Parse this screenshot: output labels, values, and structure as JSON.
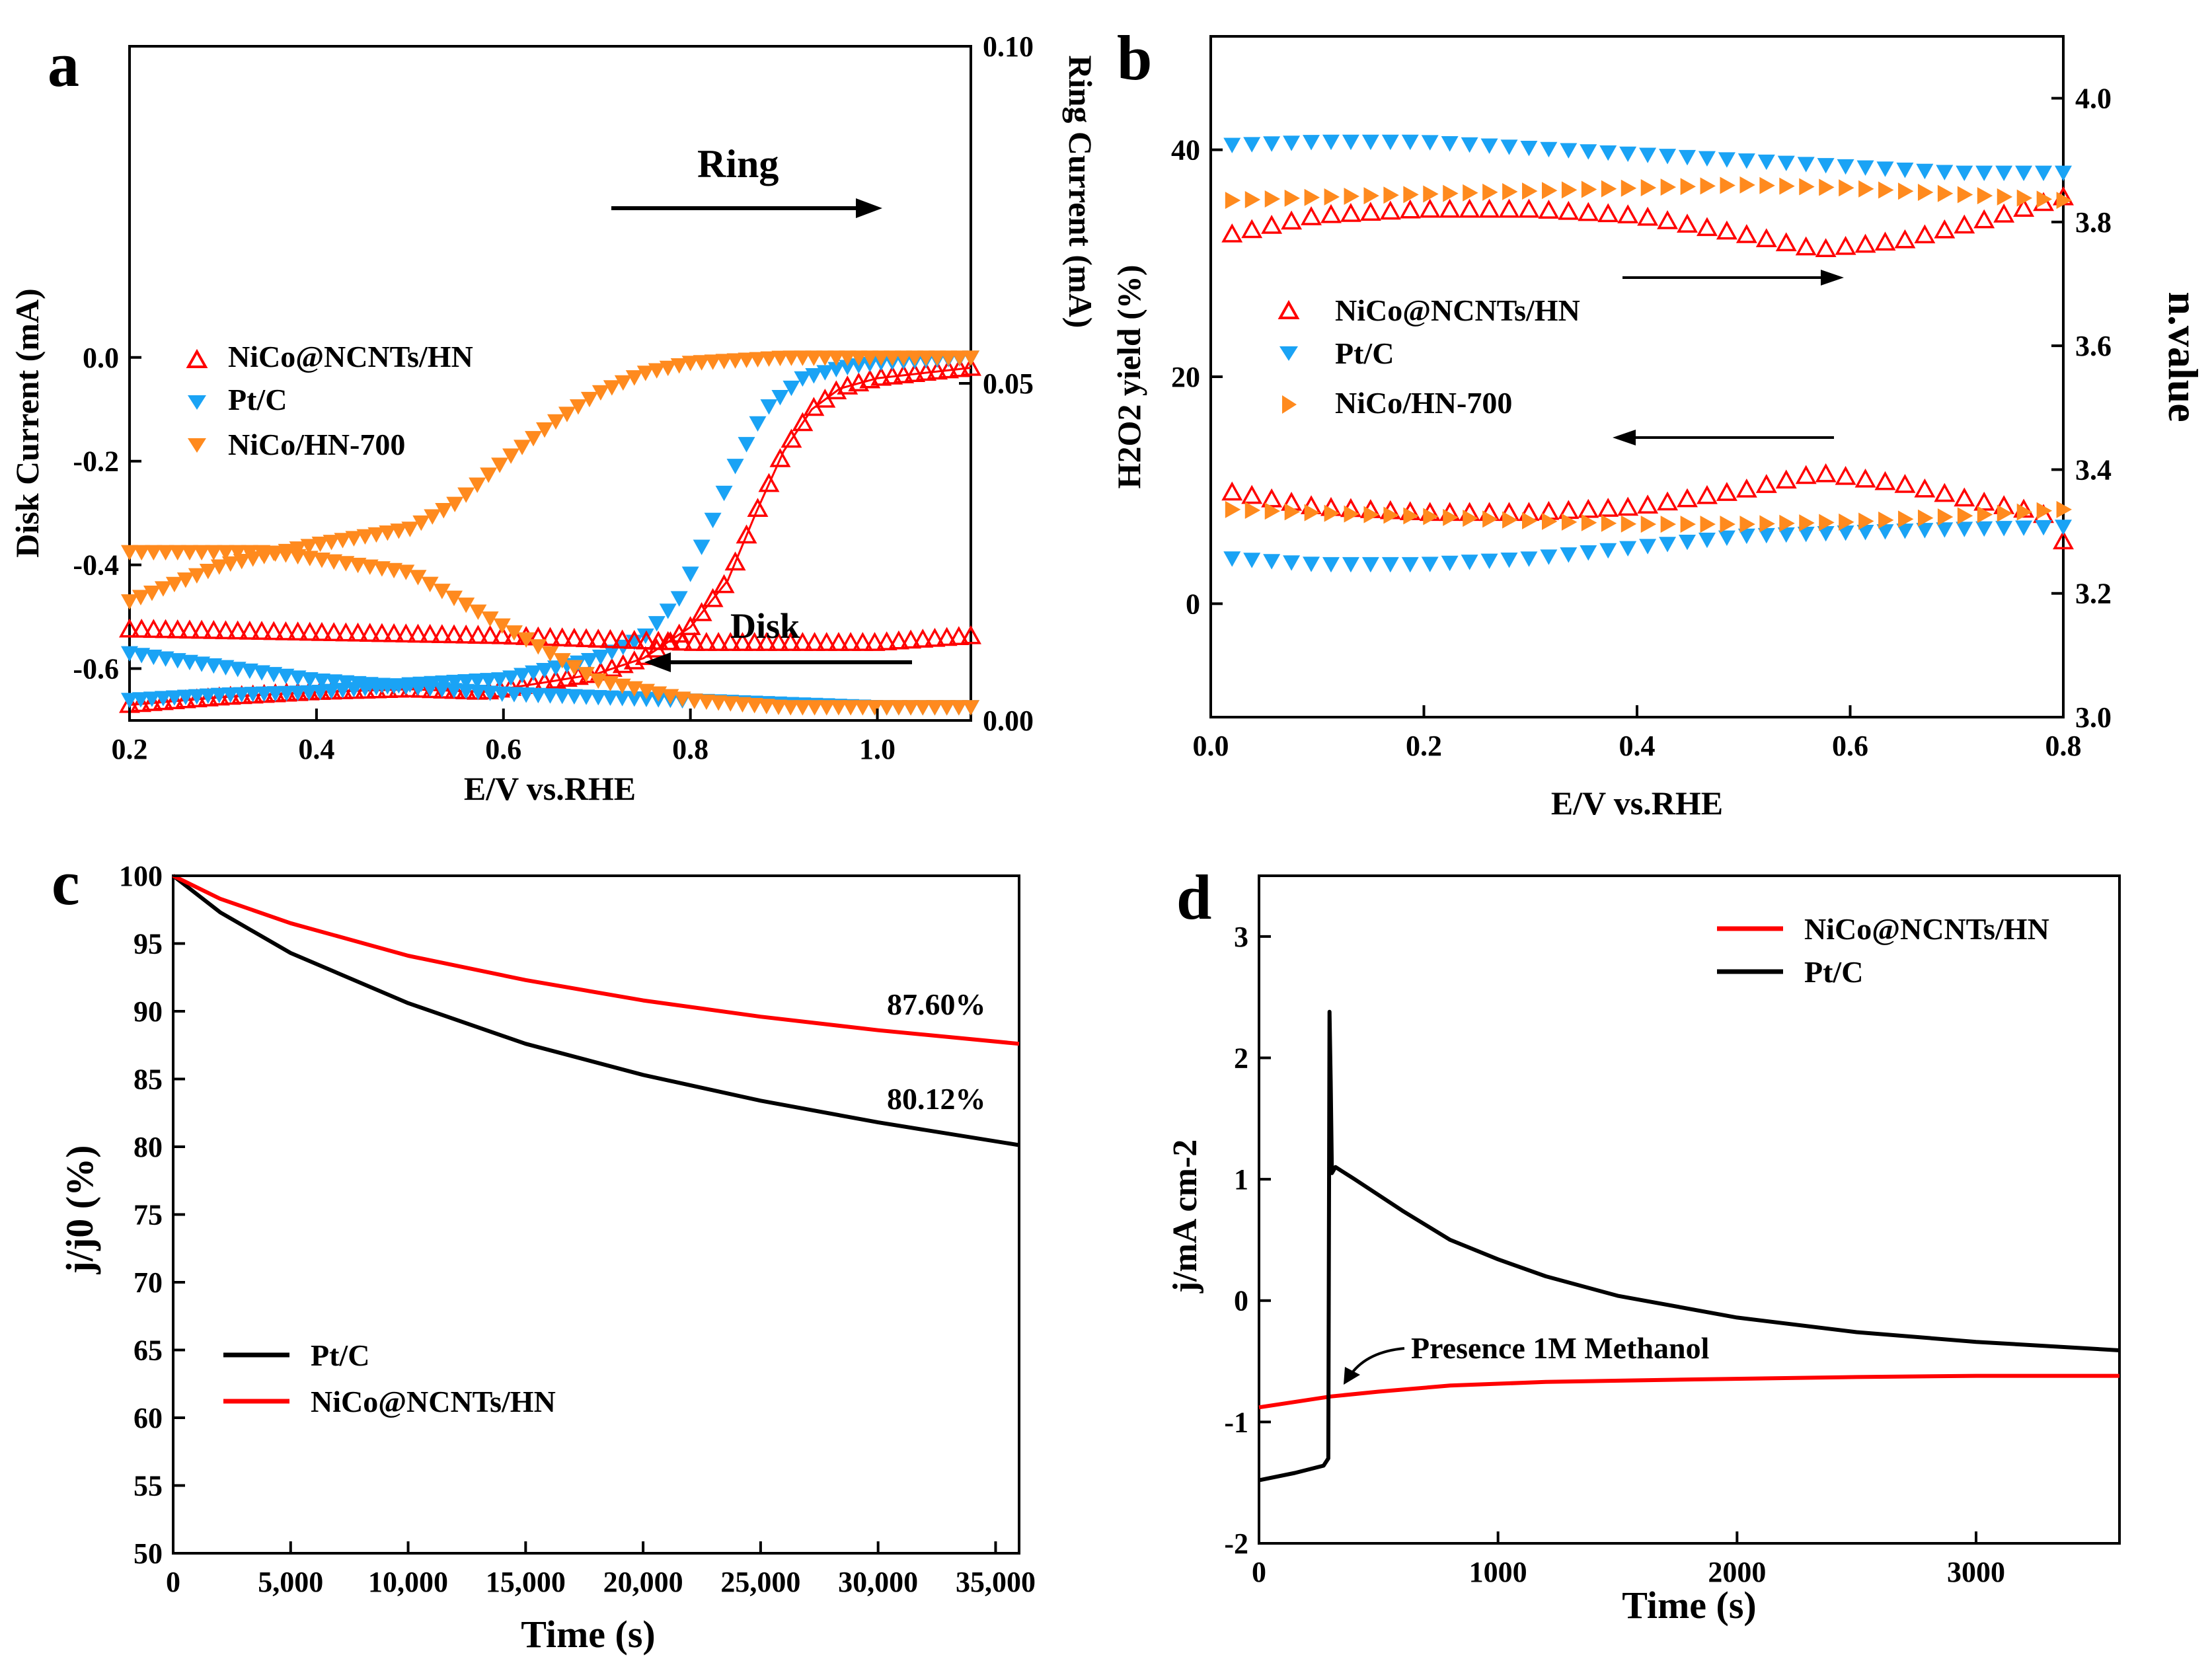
{
  "colors": {
    "red": "#ff0000",
    "blue": "#1aa3f5",
    "orange": "#ff8a1e",
    "black": "#000000"
  },
  "chart_data": [
    {
      "id": "a",
      "panel_label": "a",
      "type": "scatter",
      "xlabel": "E/V vs.RHE",
      "ylabel": "Disk Current (mA)",
      "y2label": "Ring Current (mA)",
      "xlim": [
        0.2,
        1.1
      ],
      "ylim": [
        -0.7,
        0.6
      ],
      "y2lim": [
        0.0,
        0.1
      ],
      "xticks": [
        "0.2",
        "0.4",
        "0.6",
        "0.8",
        "1.0"
      ],
      "yticks": [
        "0.0",
        "-0.2",
        "-0.4",
        "-0.6"
      ],
      "y2ticks": [
        "0.10",
        "0.05",
        "0.00"
      ],
      "legend": [
        "NiCo@NCNTs/HN",
        "Pt/C",
        "NiCo/HN-700"
      ],
      "annotations": {
        "ring": "Ring",
        "disk": "Disk"
      },
      "series": [
        {
          "name": "NiCo@NCNTs/HN",
          "curve": "disk",
          "marker": "triangle-up-open",
          "color": "red",
          "points": [
            [
              0.2,
              -0.67
            ],
            [
              0.3,
              -0.655
            ],
            [
              0.4,
              -0.645
            ],
            [
              0.5,
              -0.64
            ],
            [
              0.58,
              -0.645
            ],
            [
              0.65,
              -0.625
            ],
            [
              0.7,
              -0.61
            ],
            [
              0.75,
              -0.58
            ],
            [
              0.8,
              -0.52
            ],
            [
              0.84,
              -0.43
            ],
            [
              0.87,
              -0.3
            ],
            [
              0.9,
              -0.18
            ],
            [
              0.93,
              -0.1
            ],
            [
              0.96,
              -0.06
            ],
            [
              1.0,
              -0.04
            ],
            [
              1.05,
              -0.03
            ],
            [
              1.1,
              -0.02
            ]
          ]
        },
        {
          "name": "Pt/C",
          "curve": "disk",
          "marker": "triangle-down",
          "color": "blue",
          "points": [
            [
              0.2,
              -0.66
            ],
            [
              0.3,
              -0.65
            ],
            [
              0.4,
              -0.645
            ],
            [
              0.5,
              -0.63
            ],
            [
              0.6,
              -0.62
            ],
            [
              0.65,
              -0.6
            ],
            [
              0.7,
              -0.58
            ],
            [
              0.75,
              -0.54
            ],
            [
              0.79,
              -0.46
            ],
            [
              0.82,
              -0.33
            ],
            [
              0.85,
              -0.2
            ],
            [
              0.88,
              -0.1
            ],
            [
              0.92,
              -0.04
            ],
            [
              0.96,
              -0.02
            ],
            [
              1.0,
              -0.01
            ],
            [
              1.1,
              0.0
            ]
          ]
        },
        {
          "name": "NiCo/HN-700",
          "curve": "disk",
          "marker": "triangle-down",
          "color": "orange",
          "points": [
            [
              0.2,
              -0.47
            ],
            [
              0.3,
              -0.4
            ],
            [
              0.4,
              -0.36
            ],
            [
              0.5,
              -0.33
            ],
            [
              0.55,
              -0.28
            ],
            [
              0.6,
              -0.2
            ],
            [
              0.65,
              -0.13
            ],
            [
              0.7,
              -0.07
            ],
            [
              0.75,
              -0.03
            ],
            [
              0.8,
              -0.01
            ],
            [
              0.9,
              0.0
            ],
            [
              1.0,
              0.0
            ],
            [
              1.1,
              0.0
            ]
          ]
        },
        {
          "name": "NiCo@NCNTs/HN",
          "curve": "ring",
          "marker": "triangle-up-open",
          "color": "red",
          "points": [
            [
              0.2,
              0.0135
            ],
            [
              0.4,
              0.013
            ],
            [
              0.6,
              0.0125
            ],
            [
              0.8,
              0.0115
            ],
            [
              1.0,
              0.0115
            ],
            [
              1.1,
              0.0125
            ]
          ]
        },
        {
          "name": "Pt/C",
          "curve": "ring",
          "marker": "triangle-down",
          "color": "blue",
          "points": [
            [
              0.2,
              0.01
            ],
            [
              0.4,
              0.006
            ],
            [
              0.6,
              0.004
            ],
            [
              0.8,
              0.003
            ],
            [
              1.0,
              0.002
            ],
            [
              1.1,
              0.002
            ]
          ]
        },
        {
          "name": "NiCo/HN-700",
          "curve": "ring",
          "marker": "triangle-down",
          "color": "orange",
          "points": [
            [
              0.2,
              0.025
            ],
            [
              0.35,
              0.025
            ],
            [
              0.5,
              0.022
            ],
            [
              0.6,
              0.014
            ],
            [
              0.7,
              0.006
            ],
            [
              0.8,
              0.003
            ],
            [
              0.9,
              0.002
            ],
            [
              1.1,
              0.002
            ]
          ]
        }
      ]
    },
    {
      "id": "b",
      "panel_label": "b",
      "type": "scatter",
      "xlabel": "E/V vs.RHE",
      "ylabel": "H2O2 yield (%)",
      "y2label": "n.value",
      "xlim": [
        0.0,
        0.8
      ],
      "ylim": [
        -10,
        50
      ],
      "y2lim": [
        3.0,
        4.1
      ],
      "xticks": [
        "0.0",
        "0.2",
        "0.4",
        "0.6",
        "0.8"
      ],
      "yticks": [
        "0",
        "20",
        "40"
      ],
      "y2ticks": [
        "3.0",
        "3.2",
        "3.4",
        "3.6",
        "3.8",
        "4.0"
      ],
      "legend": [
        "NiCo@NCNTs/HN",
        "Pt/C",
        "NiCo/HN-700"
      ],
      "series": [
        {
          "name": "NiCo@NCNTs/HN",
          "curve": "n",
          "marker": "triangle-up-open",
          "color": "red",
          "points": [
            [
              0.02,
              3.78
            ],
            [
              0.1,
              3.81
            ],
            [
              0.2,
              3.82
            ],
            [
              0.3,
              3.82
            ],
            [
              0.4,
              3.81
            ],
            [
              0.5,
              3.78
            ],
            [
              0.57,
              3.755
            ],
            [
              0.65,
              3.77
            ],
            [
              0.72,
              3.8
            ],
            [
              0.8,
              3.84
            ]
          ]
        },
        {
          "name": "Pt/C",
          "curve": "n",
          "marker": "triangle-down",
          "color": "blue",
          "points": [
            [
              0.02,
              3.925
            ],
            [
              0.1,
              3.93
            ],
            [
              0.2,
              3.93
            ],
            [
              0.3,
              3.92
            ],
            [
              0.4,
              3.91
            ],
            [
              0.5,
              3.9
            ],
            [
              0.6,
              3.89
            ],
            [
              0.7,
              3.88
            ],
            [
              0.8,
              3.88
            ]
          ]
        },
        {
          "name": "NiCo/HN-700",
          "curve": "n",
          "marker": "triangle-right",
          "color": "orange",
          "points": [
            [
              0.02,
              3.835
            ],
            [
              0.1,
              3.84
            ],
            [
              0.2,
              3.845
            ],
            [
              0.3,
              3.85
            ],
            [
              0.4,
              3.855
            ],
            [
              0.5,
              3.86
            ],
            [
              0.6,
              3.855
            ],
            [
              0.7,
              3.845
            ],
            [
              0.8,
              3.835
            ]
          ]
        },
        {
          "name": "NiCo@NCNTs/HN",
          "curve": "H2O2",
          "marker": "triangle-up-open",
          "color": "red",
          "points": [
            [
              0.02,
              9.8
            ],
            [
              0.1,
              8.5
            ],
            [
              0.2,
              8.0
            ],
            [
              0.3,
              8.0
            ],
            [
              0.4,
              8.5
            ],
            [
              0.5,
              10.0
            ],
            [
              0.57,
              11.5
            ],
            [
              0.65,
              10.5
            ],
            [
              0.72,
              9.0
            ],
            [
              0.78,
              8.0
            ],
            [
              0.8,
              5.5
            ]
          ]
        },
        {
          "name": "Pt/C",
          "curve": "H2O2",
          "marker": "triangle-down",
          "color": "blue",
          "points": [
            [
              0.02,
              4.0
            ],
            [
              0.1,
              3.5
            ],
            [
              0.2,
              3.5
            ],
            [
              0.3,
              4.0
            ],
            [
              0.4,
              5.0
            ],
            [
              0.5,
              6.0
            ],
            [
              0.6,
              6.3
            ],
            [
              0.7,
              6.6
            ],
            [
              0.8,
              6.8
            ]
          ]
        },
        {
          "name": "NiCo/HN-700",
          "curve": "H2O2",
          "marker": "triangle-right",
          "color": "orange",
          "points": [
            [
              0.02,
              8.3
            ],
            [
              0.1,
              8.0
            ],
            [
              0.2,
              7.7
            ],
            [
              0.3,
              7.3
            ],
            [
              0.4,
              7.0
            ],
            [
              0.5,
              7.0
            ],
            [
              0.6,
              7.2
            ],
            [
              0.7,
              7.7
            ],
            [
              0.8,
              8.3
            ]
          ]
        }
      ]
    },
    {
      "id": "c",
      "panel_label": "c",
      "type": "line",
      "xlabel": "Time (s)",
      "ylabel": "j/j0 (%)",
      "xlim": [
        0,
        36000
      ],
      "ylim": [
        50,
        100
      ],
      "xticks": [
        "0",
        "5,000",
        "10,000",
        "15,000",
        "20,000",
        "25,000",
        "30,000",
        "35,000"
      ],
      "yticks": [
        "100",
        "95",
        "90",
        "85",
        "80",
        "75",
        "70",
        "65",
        "60",
        "55",
        "50"
      ],
      "legend": [
        "Pt/C",
        "NiCo@NCNTs/HN"
      ],
      "annotations": {
        "nico_final": "87.60%",
        "ptc_final": "80.12%"
      },
      "series": [
        {
          "name": "Pt/C",
          "color": "black",
          "points": [
            [
              0,
              100
            ],
            [
              2000,
              97.3
            ],
            [
              5000,
              94.3
            ],
            [
              10000,
              90.6
            ],
            [
              15000,
              87.6
            ],
            [
              20000,
              85.3
            ],
            [
              25000,
              83.4
            ],
            [
              30000,
              81.8
            ],
            [
              36000,
              80.12
            ]
          ]
        },
        {
          "name": "NiCo@NCNTs/HN",
          "color": "red",
          "points": [
            [
              0,
              100
            ],
            [
              2000,
              98.3
            ],
            [
              5000,
              96.5
            ],
            [
              10000,
              94.1
            ],
            [
              15000,
              92.3
            ],
            [
              20000,
              90.8
            ],
            [
              25000,
              89.6
            ],
            [
              30000,
              88.6
            ],
            [
              36000,
              87.6
            ]
          ]
        }
      ]
    },
    {
      "id": "d",
      "panel_label": "d",
      "type": "line",
      "xlabel": "Time (s)",
      "ylabel": "j/mA cm-2",
      "xlim": [
        0,
        3600
      ],
      "ylim": [
        -2,
        3.5
      ],
      "xticks": [
        "0",
        "1000",
        "2000",
        "3000"
      ],
      "yticks": [
        "3",
        "2",
        "1",
        "0",
        "-1",
        "-2"
      ],
      "legend": [
        "NiCo@NCNTs/HN",
        "Pt/C"
      ],
      "annotations": {
        "methanol": "Presence 1M Methanol"
      },
      "series": [
        {
          "name": "NiCo@NCNTs/HN",
          "color": "red",
          "points": [
            [
              0,
              -0.88
            ],
            [
              200,
              -0.82
            ],
            [
              300,
              -0.79
            ],
            [
              500,
              -0.75
            ],
            [
              800,
              -0.7
            ],
            [
              1200,
              -0.67
            ],
            [
              1800,
              -0.65
            ],
            [
              2500,
              -0.63
            ],
            [
              3000,
              -0.62
            ],
            [
              3600,
              -0.62
            ]
          ]
        },
        {
          "name": "Pt/C",
          "color": "black",
          "points": [
            [
              0,
              -1.48
            ],
            [
              150,
              -1.42
            ],
            [
              270,
              -1.36
            ],
            [
              290,
              -1.3
            ],
            [
              295,
              2.38
            ],
            [
              300,
              1.8
            ],
            [
              305,
              1.05
            ],
            [
              320,
              1.1
            ],
            [
              400,
              1.0
            ],
            [
              600,
              0.74
            ],
            [
              800,
              0.5
            ],
            [
              1000,
              0.34
            ],
            [
              1200,
              0.2
            ],
            [
              1500,
              0.04
            ],
            [
              2000,
              -0.14
            ],
            [
              2500,
              -0.26
            ],
            [
              3000,
              -0.34
            ],
            [
              3600,
              -0.41
            ]
          ]
        }
      ]
    }
  ]
}
